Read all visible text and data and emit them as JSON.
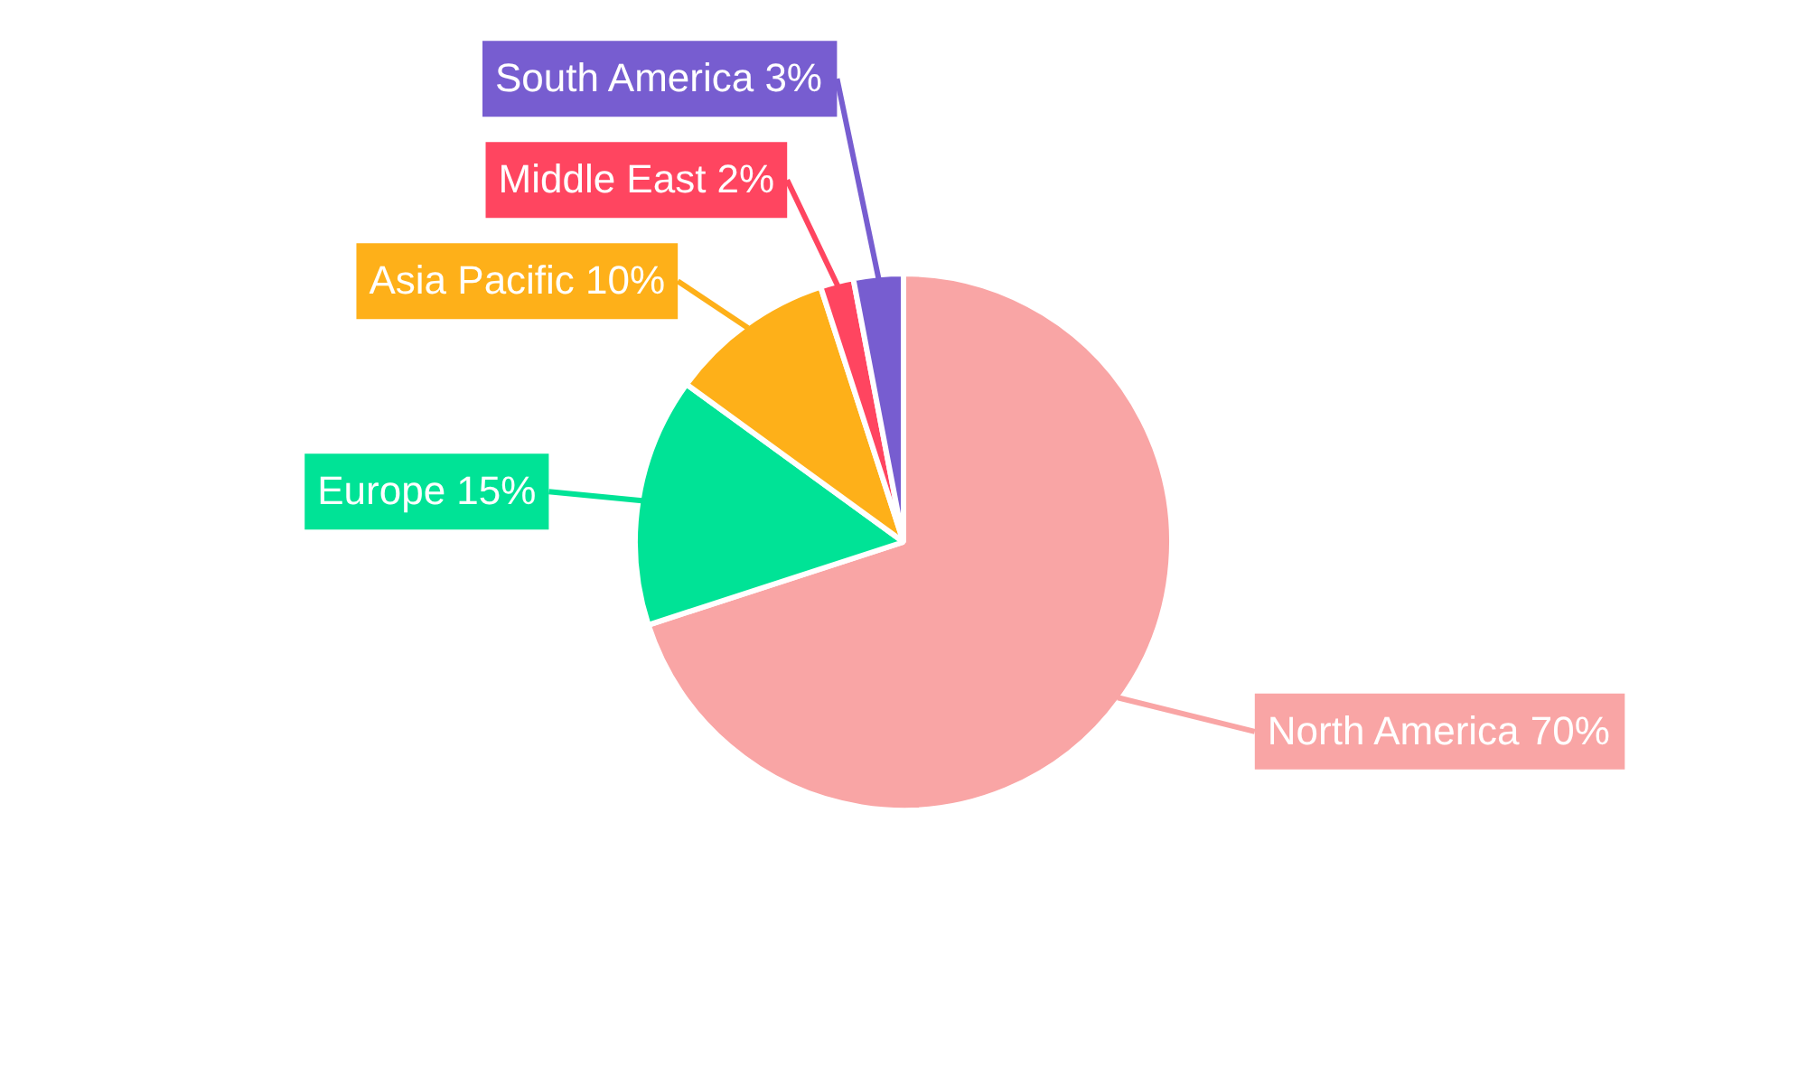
{
  "chart_data": {
    "type": "pie",
    "categories": [
      "North America",
      "Europe",
      "Asia Pacific",
      "Middle East",
      "South America"
    ],
    "values": [
      70,
      15,
      10,
      2,
      3
    ],
    "value_labels": [
      "70%",
      "15%",
      "10%",
      "2%",
      "3%"
    ],
    "colors": [
      "#f9a5a5",
      "#00e396",
      "#feb019",
      "#ff4560",
      "#775dd0"
    ],
    "legend": false
  }
}
